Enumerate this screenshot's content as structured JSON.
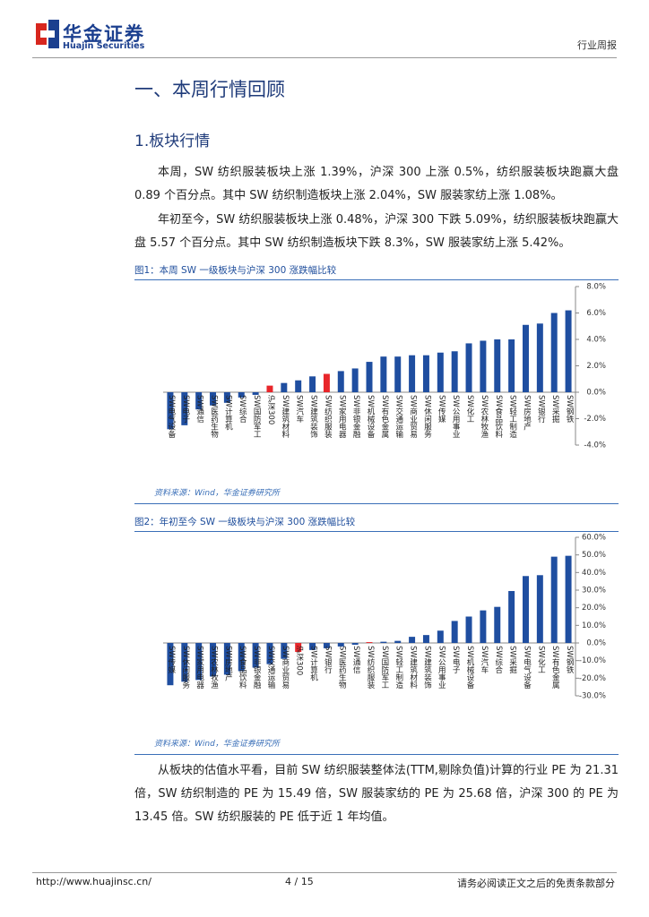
{
  "header": {
    "company": "华金证券",
    "company_en": "Huajin Securities",
    "report_type": "行业周报"
  },
  "section_title": "一、本周行情回顾",
  "subsection_title": "1.板块行情",
  "paragraphs": [
    "本周，SW 纺织服装板块上涨 1.39%，沪深 300 上涨 0.5%，纺织服装板块跑赢大盘 0.89 个百分点。其中 SW 纺织制造板块上涨 2.04%，SW 服装家纺上涨 1.08%。",
    "年初至今，SW 纺织服装板块上涨 0.48%，沪深 300 下跌 5.09%，纺织服装板块跑赢大盘 5.57 个百分点。其中 SW 纺织制造板块下跌 8.3%，SW 服装家纺上涨 5.42%。"
  ],
  "chart_data": [
    {
      "type": "bar",
      "title": "图1：本周 SW 一级板块与沪深 300 涨跌幅比较",
      "categories": [
        "SW电气设备",
        "SW电子",
        "SW通信",
        "SW医药生物",
        "SW计算机",
        "SW综合",
        "SW国防军工",
        "沪深300",
        "SW建筑材料",
        "SW汽车",
        "SW建筑装饰",
        "SW纺织服装",
        "SW家用电器",
        "SW非银金融",
        "SW机械设备",
        "SW有色金属",
        "SW交通运输",
        "SW商业贸易",
        "SW休闲服务",
        "SW传媒",
        "SW公用事业",
        "SW化工",
        "SW农林牧渔",
        "SW食品饮料",
        "SW轻工制造",
        "SW房地产",
        "SW银行",
        "SW采掘",
        "SW钢铁"
      ],
      "values": [
        -2.8,
        -2.5,
        -1.3,
        -1.0,
        -0.8,
        -0.4,
        -0.2,
        0.5,
        0.7,
        0.9,
        1.2,
        1.39,
        1.6,
        1.8,
        2.3,
        2.7,
        2.7,
        2.8,
        2.8,
        3.0,
        3.1,
        3.7,
        3.9,
        4.0,
        4.0,
        5.1,
        5.2,
        6.0,
        6.2
      ],
      "colors": [
        "#1f4ea0",
        "#1f4ea0",
        "#1f4ea0",
        "#1f4ea0",
        "#1f4ea0",
        "#1f4ea0",
        "#1f4ea0",
        "#e8262a",
        "#1f4ea0",
        "#1f4ea0",
        "#1f4ea0",
        "#e8262a",
        "#1f4ea0",
        "#1f4ea0",
        "#1f4ea0",
        "#1f4ea0",
        "#1f4ea0",
        "#1f4ea0",
        "#1f4ea0",
        "#1f4ea0",
        "#1f4ea0",
        "#1f4ea0",
        "#1f4ea0",
        "#1f4ea0",
        "#1f4ea0",
        "#1f4ea0",
        "#1f4ea0",
        "#1f4ea0",
        "#1f4ea0"
      ],
      "ylim": [
        -4,
        8
      ],
      "yticks": [
        {
          "value": -4,
          "label": "-4.0%"
        },
        {
          "value": -2,
          "label": "-2.0%"
        },
        {
          "value": 0,
          "label": "0.0%"
        },
        {
          "value": 2,
          "label": "2.0%"
        },
        {
          "value": 4,
          "label": "4.0%"
        },
        {
          "value": 6,
          "label": "6.0%"
        },
        {
          "value": 8,
          "label": "8.0%"
        }
      ],
      "source": "资料来源：Wind，华金证券研究所"
    },
    {
      "type": "bar",
      "title": "图2：年初至今 SW 一级板块与沪深 300 涨跌幅比较",
      "categories": [
        "SW传媒",
        "SW休闲服务",
        "SW家用电器",
        "SW农林牧渔",
        "SW房地产",
        "SW食品饮料",
        "SW非银金融",
        "SW交通运输",
        "SW商业贸易",
        "沪深300",
        "SW计算机",
        "SW银行",
        "SW医药生物",
        "SW通信",
        "SW纺织服装",
        "SW国防军工",
        "SW轻工制造",
        "SW建筑材料",
        "SW建筑装饰",
        "SW公用事业",
        "SW电子",
        "SW机械设备",
        "SW汽车",
        "SW综合",
        "SW采掘",
        "SW电气设备",
        "SW化工",
        "SW有色金属",
        "SW钢铁"
      ],
      "values": [
        -24,
        -22,
        -21,
        -19,
        -18,
        -16,
        -14,
        -12,
        -9,
        -5.09,
        -4,
        -3,
        -2,
        -1,
        0.48,
        0.7,
        1.2,
        3.5,
        4.5,
        7,
        12.5,
        15,
        18.5,
        20.5,
        29.5,
        38,
        38.5,
        49,
        49.5
      ],
      "colors": [
        "#1f4ea0",
        "#1f4ea0",
        "#1f4ea0",
        "#1f4ea0",
        "#1f4ea0",
        "#1f4ea0",
        "#1f4ea0",
        "#1f4ea0",
        "#1f4ea0",
        "#e8262a",
        "#1f4ea0",
        "#1f4ea0",
        "#1f4ea0",
        "#1f4ea0",
        "#e8262a",
        "#1f4ea0",
        "#1f4ea0",
        "#1f4ea0",
        "#1f4ea0",
        "#1f4ea0",
        "#1f4ea0",
        "#1f4ea0",
        "#1f4ea0",
        "#1f4ea0",
        "#1f4ea0",
        "#1f4ea0",
        "#1f4ea0",
        "#1f4ea0",
        "#1f4ea0"
      ],
      "ylim": [
        -30,
        60
      ],
      "yticks": [
        {
          "value": -30,
          "label": "-30.0%"
        },
        {
          "value": -20,
          "label": "-20.0%"
        },
        {
          "value": -10,
          "label": "-10.0%"
        },
        {
          "value": 0,
          "label": "0.0%"
        },
        {
          "value": 10,
          "label": "10.0%"
        },
        {
          "value": 20,
          "label": "20.0%"
        },
        {
          "value": 30,
          "label": "30.0%"
        },
        {
          "value": 40,
          "label": "40.0%"
        },
        {
          "value": 50,
          "label": "50.0%"
        },
        {
          "value": 60,
          "label": "60.0%"
        }
      ],
      "source": "资料来源：Wind，华金证券研究所"
    }
  ],
  "closing_paragraph": "从板块的估值水平看，目前 SW 纺织服装整体法(TTM,剔除负值)计算的行业 PE 为 21.31 倍，SW 纺织制造的 PE 为 15.49 倍，SW 服装家纺的 PE 为 25.68 倍，沪深 300 的 PE 为 13.45 倍。SW 纺织服装的 PE 低于近 1 年均值。",
  "footer": {
    "url": "http://www.huajinsc.cn/",
    "page": "4 / 15",
    "disclaimer": "请务必阅读正文之后的免责条款部分"
  }
}
